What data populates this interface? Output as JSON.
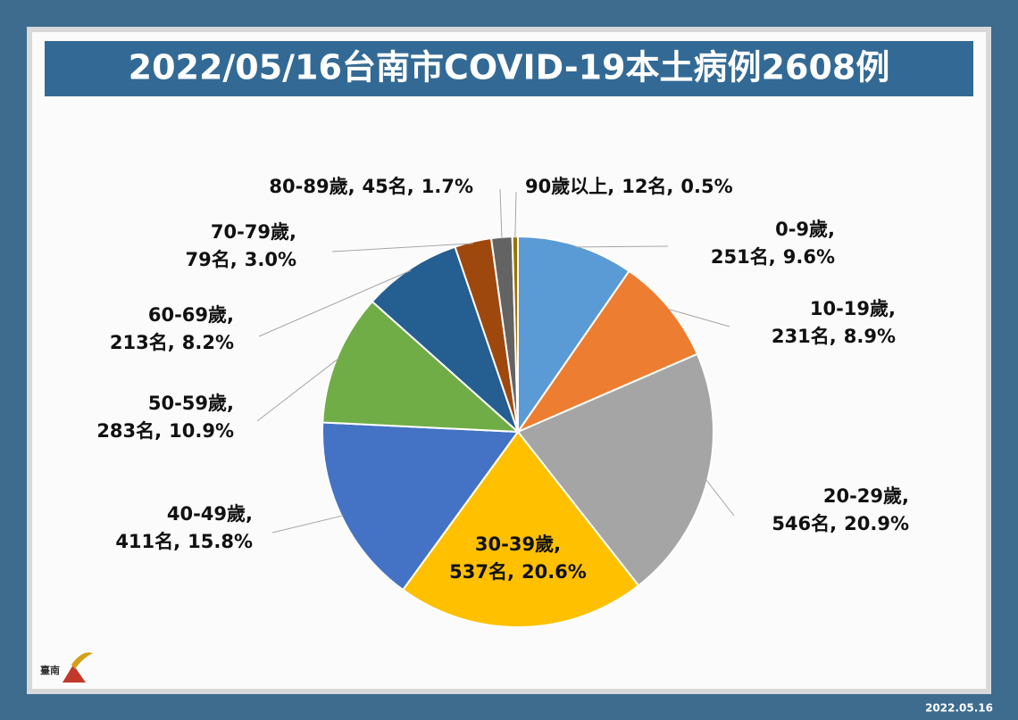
{
  "chart_data": {
    "type": "pie",
    "title": "2022/05/16台南市COVID-19本土病例2608例",
    "categories": [
      "0-9歲,",
      "10-19歲,",
      "20-29歲,",
      "30-39歲,",
      "40-49歲,",
      "50-59歲,",
      "60-69歲,",
      "70-79歲,",
      "80-89歲,",
      "90歲以上,"
    ],
    "values": [
      251,
      231,
      546,
      537,
      411,
      283,
      213,
      79,
      45,
      12
    ],
    "value_labels": [
      "251名,",
      "231名,",
      "546名,",
      "537名,",
      "411名,",
      "283名,",
      "213名,",
      "79名,",
      "45名,",
      "12名,"
    ],
    "percent_labels": [
      "9.6%",
      "8.9%",
      "20.9%",
      "20.6%",
      "15.8%",
      "10.9%",
      "8.2%",
      "3.0%",
      "1.7%",
      "0.5%"
    ],
    "colors": [
      "#5b9bd5",
      "#ed7d31",
      "#a5a5a5",
      "#ffc000",
      "#4472c4",
      "#70ad47",
      "#255e91",
      "#9e480e",
      "#636363",
      "#997300"
    ]
  },
  "logo_text": "臺南",
  "date": "2022.05.16"
}
